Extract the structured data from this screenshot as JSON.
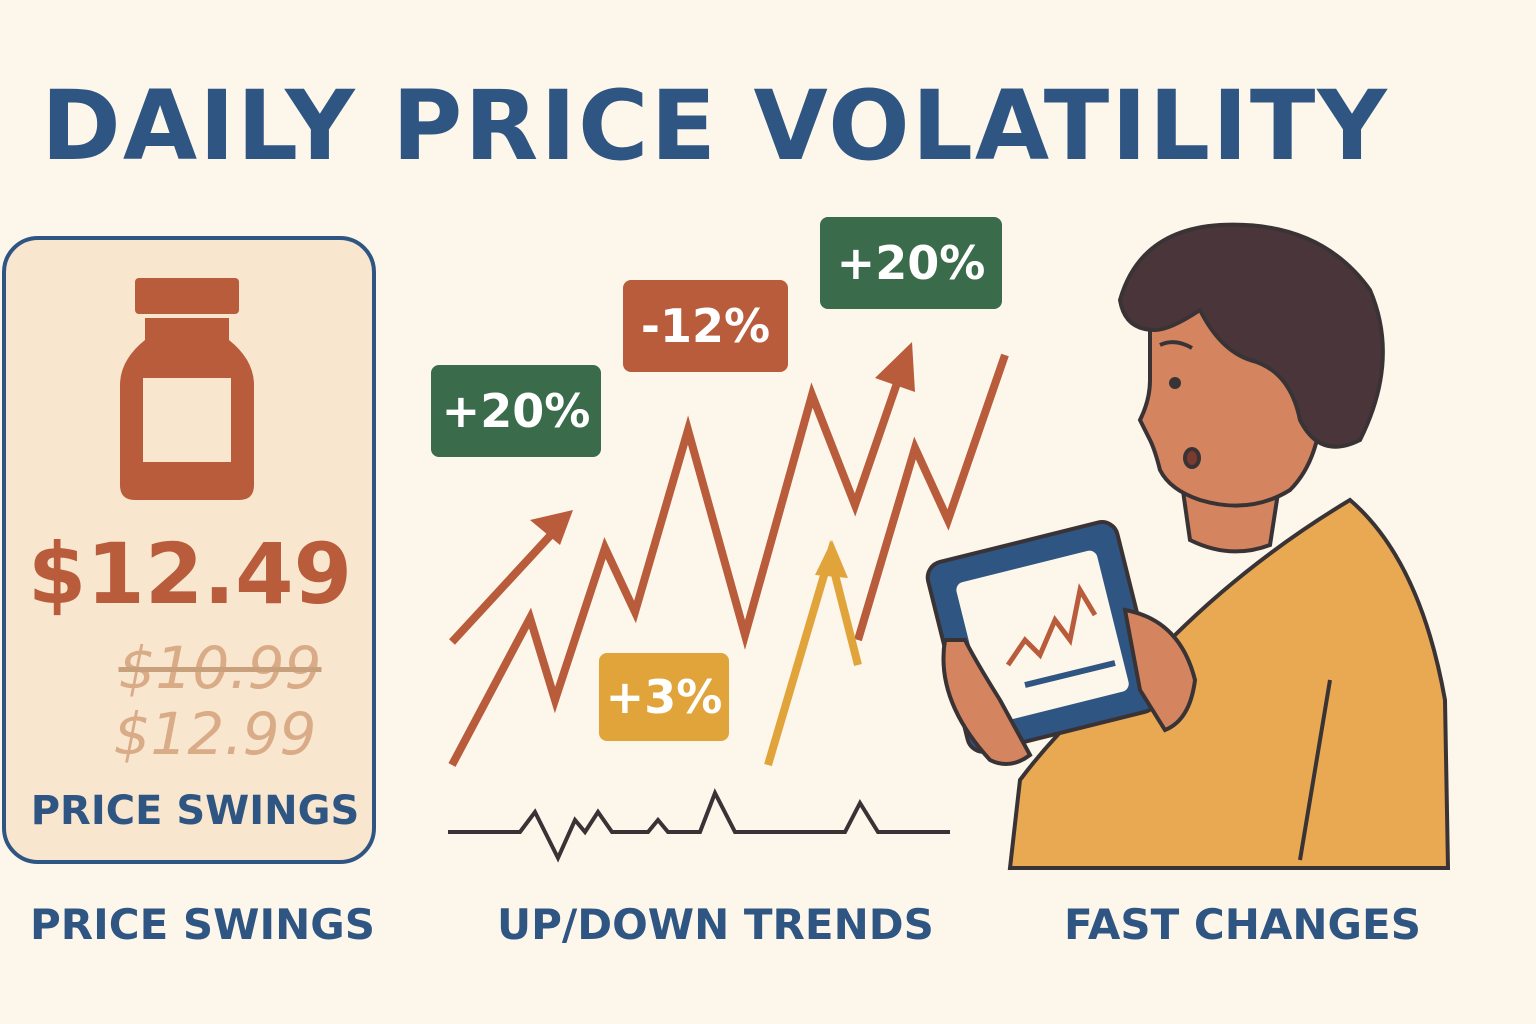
{
  "title": "DAILY PRICE VOLATILITY",
  "card": {
    "icon": "medicine-bottle-icon",
    "current_price": "$12.49",
    "old_price": "$10.99",
    "alt_price": "$12.99",
    "label": "PRICE SWINGS"
  },
  "badges": [
    {
      "text": "+20%",
      "color": "#3a6b4a"
    },
    {
      "text": "-12%",
      "color": "#b85c3c"
    },
    {
      "text": "+20%",
      "color": "#3a6b4a"
    },
    {
      "text": "+3%",
      "color": "#e0a43a"
    }
  ],
  "captions": [
    "PRICE SWINGS",
    "UP/DOWN TRENDS",
    "FAST CHANGES"
  ],
  "colors": {
    "background": "#fdf6ea",
    "title": "#2f5583",
    "rust": "#b85c3c",
    "green": "#3a6b4a",
    "yellow": "#e0a43a"
  }
}
